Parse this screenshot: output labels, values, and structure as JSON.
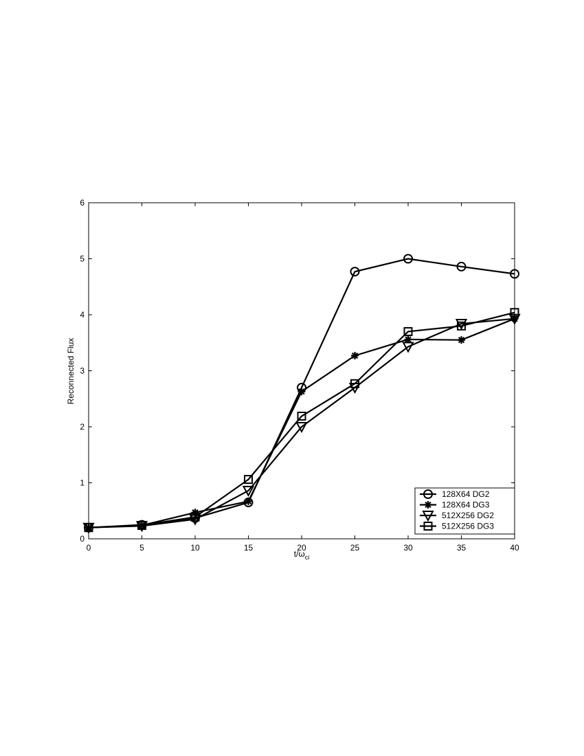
{
  "chart_data": {
    "type": "line",
    "title": "",
    "xlabel": "t/ω",
    "xlabel_subscript": "ci",
    "xlabel_prefix": "t/",
    "ylabel": "Reconnected Flux",
    "xlim": [
      0,
      40
    ],
    "ylim": [
      0,
      6
    ],
    "xticks": [
      0,
      5,
      10,
      15,
      20,
      25,
      30,
      35,
      40
    ],
    "yticks": [
      0,
      1,
      2,
      3,
      4,
      5,
      6
    ],
    "xtick_labels": [
      "0",
      "5",
      "10",
      "15",
      "20",
      "25",
      "30",
      "35",
      "40"
    ],
    "ytick_labels": [
      "0",
      "1",
      "2",
      "3",
      "4",
      "5",
      "6"
    ],
    "grid": false,
    "legend_position": "bottom-right",
    "x": [
      0,
      5,
      10,
      15,
      20,
      25,
      30,
      35,
      40
    ],
    "series": [
      {
        "name": "128X64 DG2",
        "marker": "circle",
        "values": [
          0.2,
          0.25,
          0.37,
          0.65,
          2.7,
          4.77,
          5.0,
          4.86,
          4.73
        ]
      },
      {
        "name": "128X64 DG3",
        "marker": "asterisk",
        "values": [
          0.2,
          0.24,
          0.47,
          0.67,
          2.63,
          3.27,
          3.56,
          3.55,
          3.93
        ]
      },
      {
        "name": "512X256 DG2",
        "marker": "triangle-down",
        "values": [
          0.2,
          0.23,
          0.35,
          0.86,
          2.0,
          2.7,
          3.43,
          3.84,
          3.93
        ]
      },
      {
        "name": "512X256 DG3",
        "marker": "square",
        "values": [
          0.2,
          0.24,
          0.39,
          1.06,
          2.19,
          2.77,
          3.7,
          3.8,
          4.04
        ]
      }
    ],
    "colors": {
      "line": "#000000",
      "background": "#ffffff"
    }
  }
}
